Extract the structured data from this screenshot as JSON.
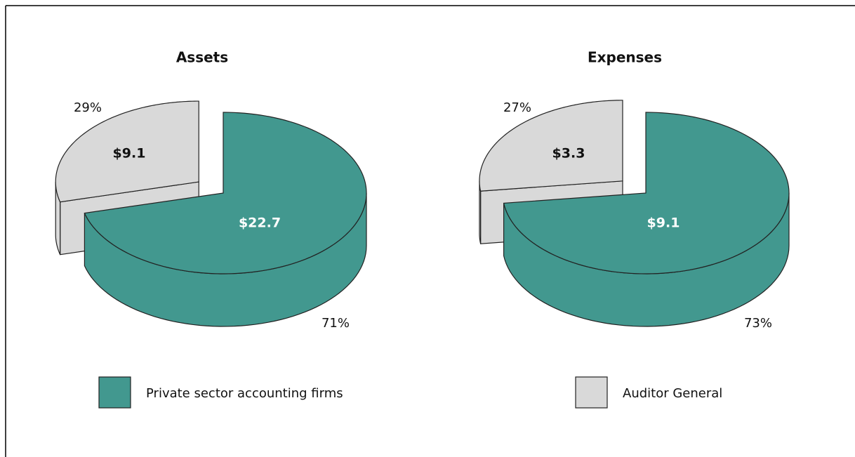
{
  "chart_data": [
    {
      "type": "pie",
      "title": "Assets",
      "values": [
        71,
        29
      ],
      "value_labels": [
        "71%",
        "29%"
      ],
      "amounts": [
        22.7,
        9.1
      ],
      "amount_labels": [
        "$22.7",
        "$9.1"
      ]
    },
    {
      "type": "pie",
      "title": "Expenses",
      "values": [
        73,
        27
      ],
      "value_labels": [
        "73%",
        "27%"
      ],
      "amounts": [
        9.1,
        3.3
      ],
      "amount_labels": [
        "$9.1",
        "$3.3"
      ]
    }
  ],
  "legend": {
    "entries": [
      {
        "name": "Private sector accounting firms",
        "color": "#42988f"
      },
      {
        "name": "Auditor General",
        "color": "#d9d9d9"
      }
    ]
  }
}
